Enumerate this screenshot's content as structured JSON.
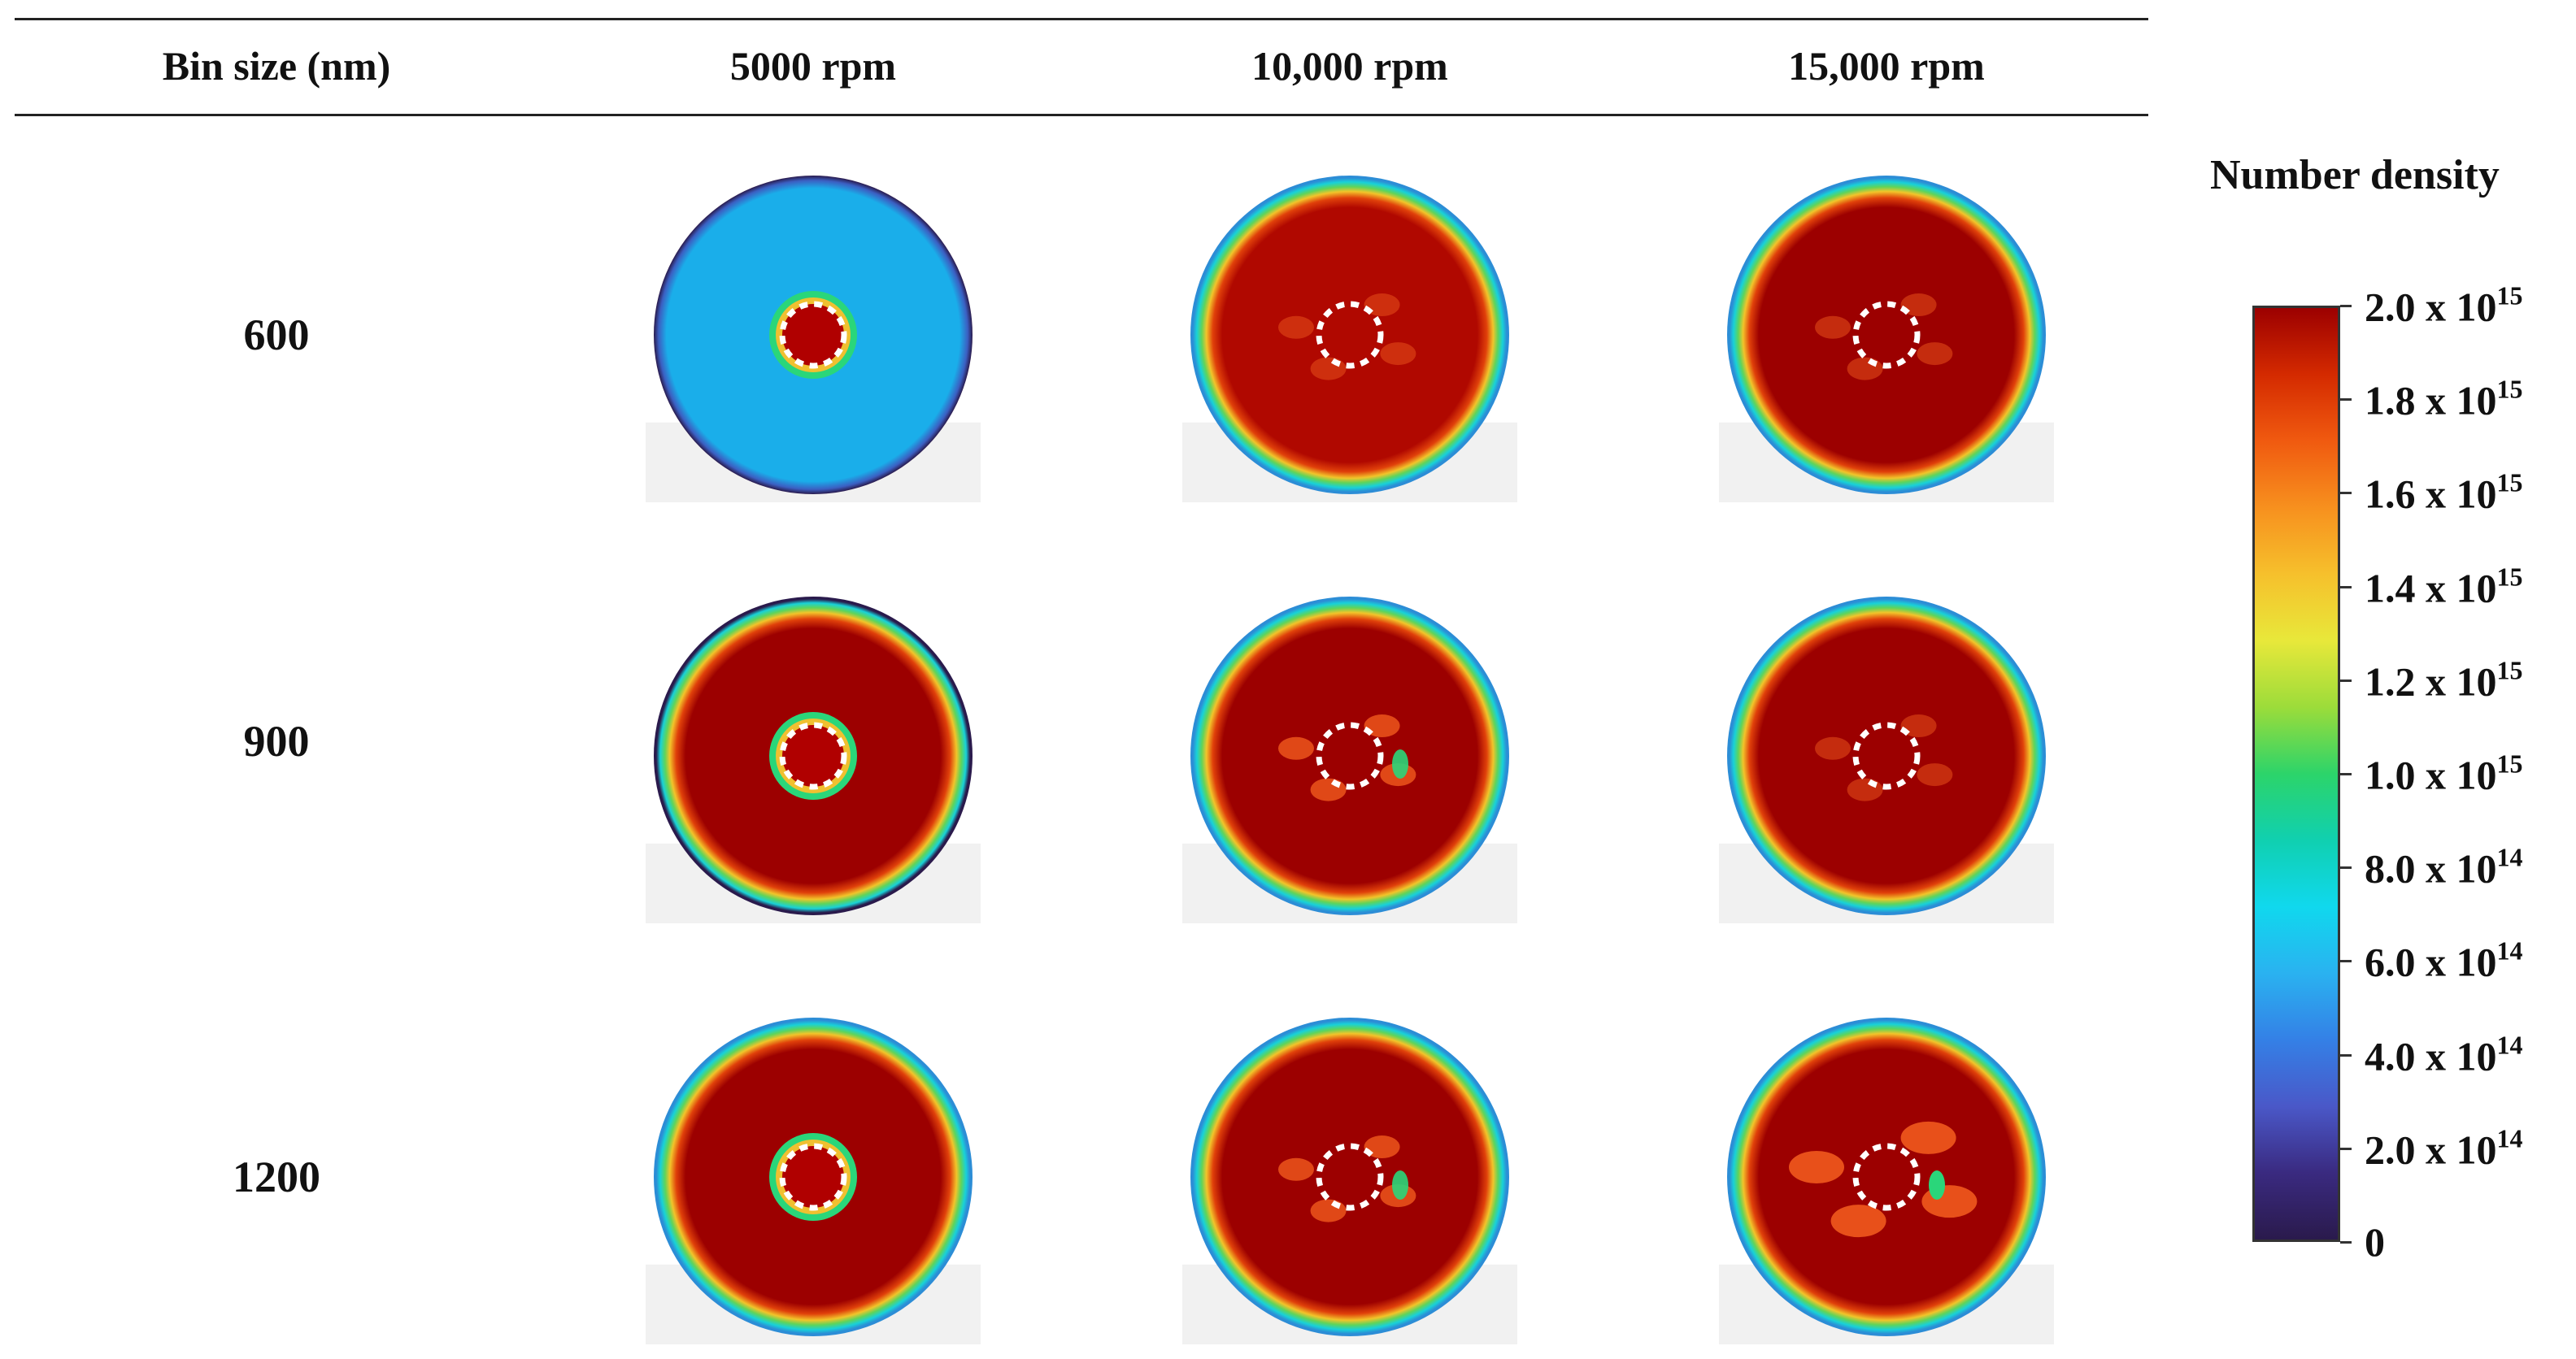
{
  "table": {
    "headers": [
      "Bin size (nm)",
      "5000 rpm",
      "10,000 rpm",
      "15,000 rpm"
    ],
    "rows": [
      {
        "label": "600",
        "cells": [
          {
            "bg": "#1aaeea",
            "rim": "#2a1a4c",
            "band": "none",
            "inner": "green",
            "spots": "none"
          },
          {
            "bg": "#b00800",
            "rim": "#2c8dd6",
            "band": "rainbow",
            "inner": "none",
            "spots": "light"
          },
          {
            "bg": "#9c0000",
            "rim": "#2c8dd6",
            "band": "rainbow",
            "inner": "none",
            "spots": "light"
          }
        ]
      },
      {
        "label": "900",
        "cells": [
          {
            "bg": "#9c0000",
            "rim": "#2a1a4c",
            "band": "rainbow",
            "inner": "green",
            "spots": "none"
          },
          {
            "bg": "#9c0000",
            "rim": "#2c8dd6",
            "band": "rainbow",
            "inner": "none",
            "spots": "strong"
          },
          {
            "bg": "#9c0000",
            "rim": "#2c8dd6",
            "band": "rainbow",
            "inner": "none",
            "spots": "light"
          }
        ]
      },
      {
        "label": "1200",
        "cells": [
          {
            "bg": "#9c0000",
            "rim": "#2c8dd6",
            "band": "rainbow",
            "inner": "green",
            "spots": "none"
          },
          {
            "bg": "#9c0000",
            "rim": "#2c8dd6",
            "band": "rainbow",
            "inner": "none",
            "spots": "strong"
          },
          {
            "bg": "#9c0000",
            "rim": "#2c8dd6",
            "band": "rainbow",
            "inner": "none",
            "spots": "heavy"
          }
        ]
      }
    ]
  },
  "colorbar": {
    "title": "Number density",
    "labels": [
      {
        "mant": "2.0 x 10",
        "exp": "15"
      },
      {
        "mant": "1.8 x 10",
        "exp": "15"
      },
      {
        "mant": "1.6 x 10",
        "exp": "15"
      },
      {
        "mant": "1.4 x 10",
        "exp": "15"
      },
      {
        "mant": "1.2 x 10",
        "exp": "15"
      },
      {
        "mant": "1.0 x 10",
        "exp": "15"
      },
      {
        "mant": "8.0 x 10",
        "exp": "14"
      },
      {
        "mant": "6.0 x 10",
        "exp": "14"
      },
      {
        "mant": "4.0 x 10",
        "exp": "14"
      },
      {
        "mant": "2.0 x 10",
        "exp": "14"
      },
      {
        "mant": "0",
        "exp": ""
      }
    ],
    "colors": [
      "#9c0000",
      "#d42a00",
      "#f05a10",
      "#f7901e",
      "#f6c02c",
      "#e8e83a",
      "#9cdc3a",
      "#2cd46a",
      "#10d0b0",
      "#10d8ee",
      "#2ab2f0",
      "#3480e6",
      "#4a58c8",
      "#3a2a80",
      "#2a1a4c"
    ]
  }
}
